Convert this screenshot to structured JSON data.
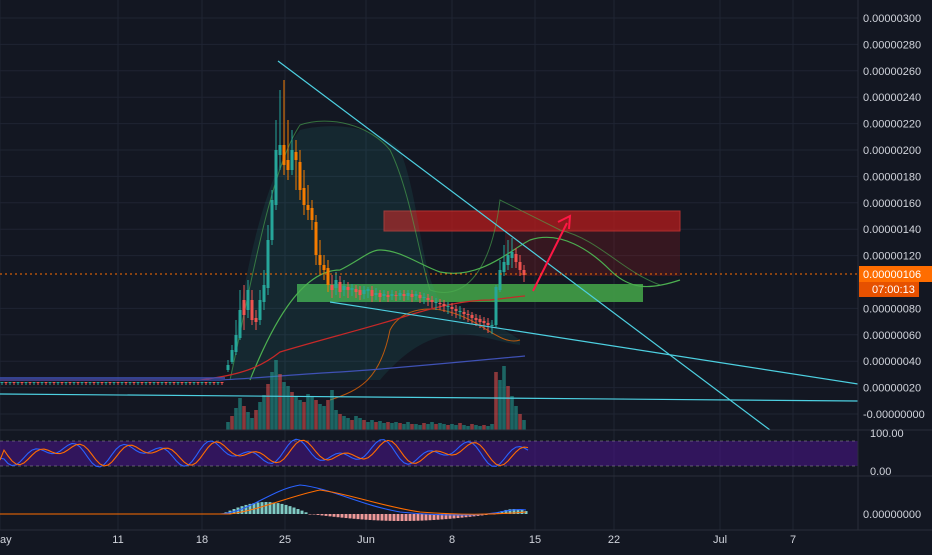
{
  "colors": {
    "background": "#131722",
    "grid": "#1f2433",
    "axis_text": "#d1d4dc",
    "candle_up": "#26a69a",
    "candle_down": "#ef5350",
    "candle_orange": "#f57c00",
    "trendline": "#4dd0e1",
    "bb_line": "#4caf50",
    "ma_red": "#c62828",
    "ma_blue": "#3f51b5",
    "ma_orange": "#ff6d00",
    "price_line": "#ff6d00",
    "target_zone": "#b71c1c",
    "support_zone": "#43a047",
    "arrow": "#ff1744",
    "rsi_band": "#4a148c",
    "rsi_k": "#2962ff",
    "rsi_d": "#ff6d00",
    "macd_line": "#2962ff",
    "signal_line": "#ff6d00"
  },
  "chart_data": [
    {
      "type": "candlestick",
      "panel": "price",
      "x_axis": {
        "type": "date",
        "tick_labels": [
          "ay",
          "11",
          "18",
          "25",
          "Jun",
          "8",
          "15",
          "22",
          "Jul",
          "7"
        ]
      },
      "y_axis": {
        "ylim": [
          -4e-08,
          3.1e-07
        ],
        "tick_labels": [
          "0.00000300",
          "0.00000280",
          "0.00000260",
          "0.00000240",
          "0.00000220",
          "0.00000200",
          "0.00000180",
          "0.00000160",
          "0.00000140",
          "0.00000120",
          "0.00000080",
          "0.00000060",
          "0.00000040",
          "0.00000020",
          "-0.00000000"
        ],
        "tick_values": [
          3e-06,
          2.8e-06,
          2.6e-06,
          2.4e-06,
          2.2e-06,
          2e-06,
          1.8e-06,
          1.6e-06,
          1.4e-06,
          1.2e-06,
          8e-07,
          6e-07,
          4e-07,
          2e-07,
          0
        ]
      },
      "current_price_label": "0.00000106",
      "countdown_label": "07:00:13",
      "grid": true
    },
    {
      "type": "line",
      "panel": "stoch_rsi",
      "tick_labels": [
        "100.00",
        "0.00"
      ],
      "ylim": [
        0,
        100
      ]
    },
    {
      "type": "histogram",
      "panel": "macd",
      "tick_labels": [
        "0.00000000"
      ]
    }
  ]
}
